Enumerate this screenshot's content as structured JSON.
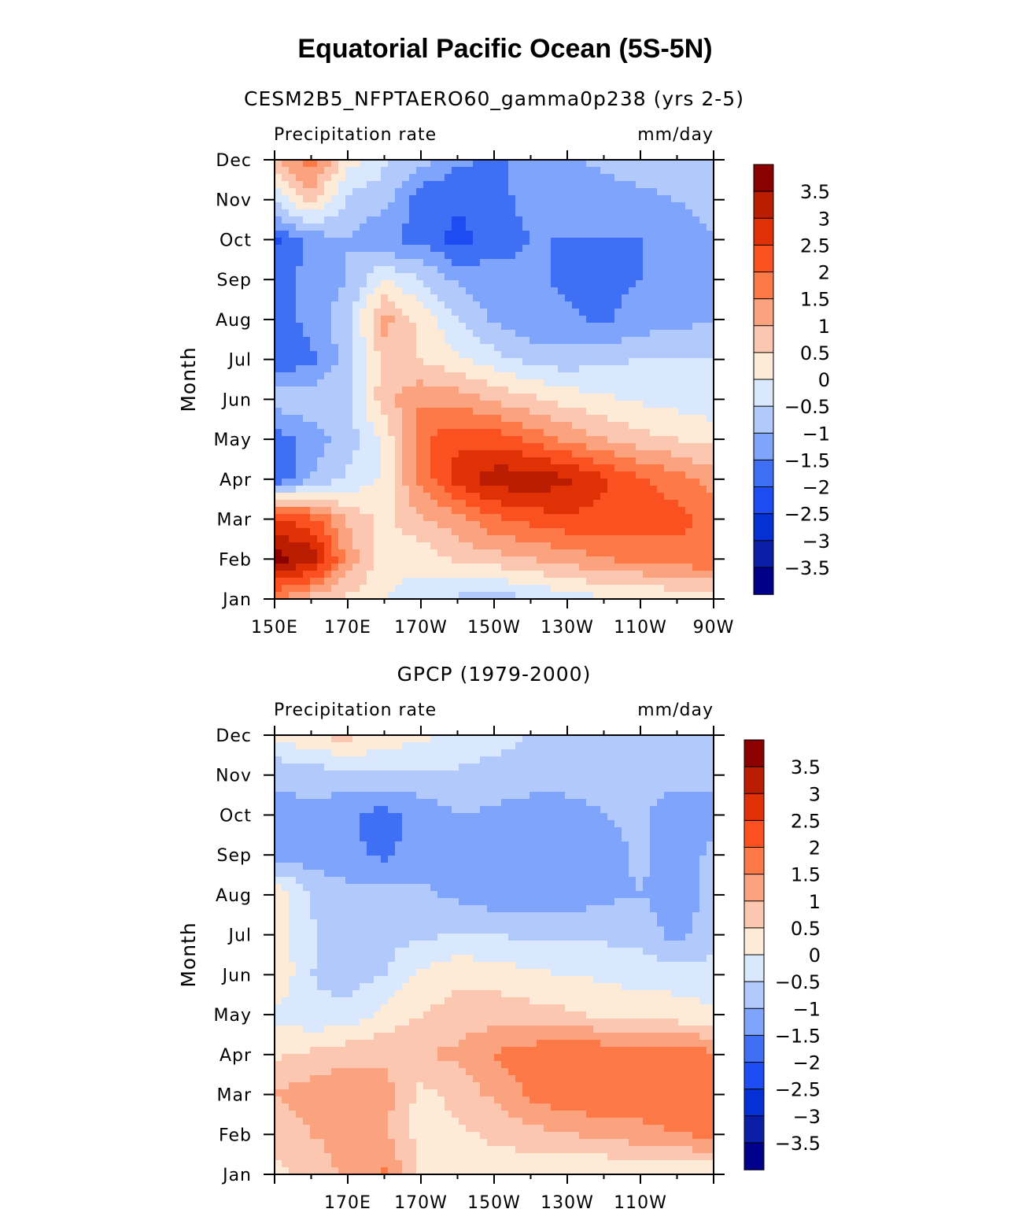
{
  "title": "Equatorial Pacific Ocean (5S-5N)",
  "colors": [
    "#00008b",
    "#0b1ea8",
    "#0530d5",
    "#1d4cf2",
    "#3f6ff5",
    "#7ea5fb",
    "#b1cafb",
    "#d9e8fc",
    "#fdebd8",
    "#fcc7b0",
    "#fba27f",
    "#fd7a48",
    "#fb501f",
    "#e03006",
    "#ba1d02",
    "#8b0000"
  ],
  "chart_data": [
    {
      "type": "heatmap",
      "subtitle": "CESM2B5_NFPTAERO60_gamma0p238 (yrs 2-5)",
      "left_label": "Precipitation rate",
      "right_label": "mm/day",
      "ylabel": "Month",
      "x_ticks": [
        "150E",
        "170E",
        "170W",
        "150W",
        "130W",
        "110W",
        "90W"
      ],
      "y_ticks": [
        "Jan",
        "Feb",
        "Mar",
        "Apr",
        "May",
        "Jun",
        "Jul",
        "Aug",
        "Sep",
        "Oct",
        "Nov",
        "Dec"
      ],
      "x_range": [
        "150E",
        "90W"
      ],
      "colorbar_labels": [
        "3.5",
        "3",
        "2.5",
        "2",
        "1.5",
        "1",
        "0.5",
        "0",
        "-0.5",
        "-1",
        "-1.5",
        "-2",
        "-2.5",
        "-3",
        "-3.5"
      ],
      "lon": [
        150,
        160,
        170,
        180,
        190,
        200,
        210,
        220,
        230,
        240,
        250,
        260,
        270
      ],
      "months": [
        "Jan",
        "Feb",
        "Mar",
        "Apr",
        "May",
        "Jun",
        "Jul",
        "Aug",
        "Sep",
        "Oct",
        "Nov",
        "Dec"
      ],
      "values": [
        [
          1.5,
          0.8,
          0.4,
          0.0,
          -0.3,
          -0.6,
          -0.8,
          -0.5,
          -0.3,
          -0.1,
          0.0,
          0.1,
          0.2
        ],
        [
          3.7,
          3.4,
          1.3,
          0.2,
          0.2,
          0.6,
          0.8,
          1.0,
          1.2,
          1.5,
          1.6,
          1.8,
          1.9
        ],
        [
          2.6,
          2.2,
          0.9,
          0.4,
          0.9,
          1.3,
          1.9,
          2.2,
          2.4,
          2.3,
          2.2,
          2.2,
          1.8
        ],
        [
          -2.0,
          -1.0,
          -0.4,
          0.1,
          1.7,
          2.7,
          3.3,
          3.4,
          3.1,
          2.6,
          2.1,
          1.7,
          1.3
        ],
        [
          -1.8,
          -1.2,
          -0.8,
          0.1,
          1.9,
          2.4,
          2.3,
          1.9,
          1.4,
          1.0,
          0.7,
          0.5,
          0.3
        ],
        [
          -0.7,
          -0.7,
          -0.6,
          0.8,
          1.4,
          1.3,
          0.9,
          0.6,
          0.3,
          0.1,
          -0.1,
          -0.2,
          -0.3
        ],
        [
          -1.9,
          -1.6,
          -0.8,
          0.7,
          0.5,
          0.1,
          -0.3,
          -0.7,
          -0.8,
          -0.6,
          -0.5,
          -0.5,
          -0.5
        ],
        [
          -1.6,
          -1.4,
          -0.6,
          1.2,
          0.3,
          -0.5,
          -1.1,
          -1.4,
          -1.4,
          -1.6,
          -1.3,
          -1.2,
          -1.0
        ],
        [
          -1.6,
          -1.4,
          -1.0,
          0.0,
          -0.5,
          -1.1,
          -1.3,
          -1.4,
          -1.6,
          -1.6,
          -1.5,
          -1.4,
          -1.2
        ],
        [
          -2.1,
          -1.3,
          -1.0,
          -1.5,
          -1.6,
          -2.2,
          -1.7,
          -1.5,
          -1.5,
          -1.5,
          -1.5,
          -1.2,
          -1.0
        ],
        [
          -0.4,
          0.7,
          -0.6,
          -0.8,
          -1.9,
          -1.9,
          -1.6,
          -1.4,
          -1.2,
          -1.2,
          -1.1,
          -1.0,
          -0.9
        ],
        [
          0.9,
          1.9,
          0.2,
          -0.4,
          -0.8,
          -1.4,
          -1.6,
          -1.3,
          -1.1,
          -0.9,
          -0.8,
          -0.7,
          -0.8
        ]
      ]
    },
    {
      "type": "heatmap",
      "subtitle": "GPCP (1979-2000)",
      "left_label": "Precipitation rate",
      "right_label": "mm/day",
      "ylabel": "Month",
      "x_ticks": [
        "170E",
        "170W",
        "150W",
        "130W",
        "110W"
      ],
      "y_ticks": [
        "Jan",
        "Feb",
        "Mar",
        "Apr",
        "May",
        "Jun",
        "Jul",
        "Aug",
        "Sep",
        "Oct",
        "Nov",
        "Dec"
      ],
      "colorbar_labels": [
        "3.5",
        "3",
        "2.5",
        "2",
        "1.5",
        "1",
        "0.5",
        "0",
        "-0.5",
        "-1",
        "-1.5",
        "-2",
        "-2.5",
        "-3",
        "-3.5"
      ],
      "lon": [
        150,
        160,
        170,
        180,
        190,
        200,
        210,
        220,
        230,
        240,
        250,
        260,
        270
      ],
      "months": [
        "Jan",
        "Feb",
        "Mar",
        "Apr",
        "May",
        "Jun",
        "Jul",
        "Aug",
        "Sep",
        "Oct",
        "Nov",
        "Dec"
      ],
      "values": [
        [
          0.4,
          0.6,
          1.2,
          1.6,
          0.4,
          0.2,
          0.2,
          0.1,
          0.1,
          0.0,
          0.1,
          0.1,
          0.1
        ],
        [
          0.6,
          1.0,
          1.2,
          1.1,
          0.3,
          0.4,
          0.6,
          0.8,
          1.0,
          1.1,
          1.3,
          1.5,
          1.6
        ],
        [
          1.0,
          1.3,
          1.3,
          1.2,
          0.3,
          0.7,
          1.1,
          1.6,
          1.9,
          2.0,
          1.9,
          2.0,
          1.7
        ],
        [
          0.4,
          0.6,
          0.9,
          0.9,
          1.0,
          1.1,
          1.5,
          1.8,
          2.0,
          1.9,
          1.8,
          1.9,
          1.6
        ],
        [
          -0.1,
          -0.4,
          -0.4,
          0.2,
          0.5,
          0.7,
          0.8,
          0.7,
          0.6,
          0.4,
          0.3,
          0.2,
          0.1
        ],
        [
          0.5,
          -0.5,
          -0.7,
          -0.5,
          0.1,
          0.4,
          0.3,
          0.1,
          0.0,
          -0.1,
          -0.2,
          -0.2,
          -0.3
        ],
        [
          0.3,
          -0.4,
          -0.8,
          -0.7,
          -0.6,
          -0.5,
          -0.5,
          -0.6,
          -0.6,
          -0.6,
          -0.7,
          -1.2,
          -0.7
        ],
        [
          0.5,
          -0.6,
          -0.8,
          -0.8,
          -0.9,
          -1.1,
          -1.3,
          -1.4,
          -1.3,
          -1.1,
          -1.0,
          -1.2,
          -0.9
        ],
        [
          -1.4,
          -1.2,
          -1.4,
          -1.6,
          -1.3,
          -1.1,
          -1.3,
          -1.4,
          -1.3,
          -1.2,
          -0.9,
          -1.2,
          -0.9
        ],
        [
          -1.2,
          -1.1,
          -1.4,
          -1.7,
          -1.3,
          -1.0,
          -1.1,
          -1.2,
          -1.2,
          -1.0,
          -0.9,
          -1.3,
          -1.2
        ],
        [
          -0.9,
          -0.8,
          -0.7,
          -0.6,
          -0.6,
          -0.6,
          -0.7,
          -0.8,
          -0.8,
          -0.8,
          -0.8,
          -0.8,
          -0.8
        ],
        [
          0.1,
          0.5,
          0.7,
          0.3,
          0.1,
          -0.1,
          -0.3,
          -0.5,
          -0.6,
          -0.6,
          -0.6,
          -0.6,
          -0.6
        ]
      ]
    }
  ]
}
